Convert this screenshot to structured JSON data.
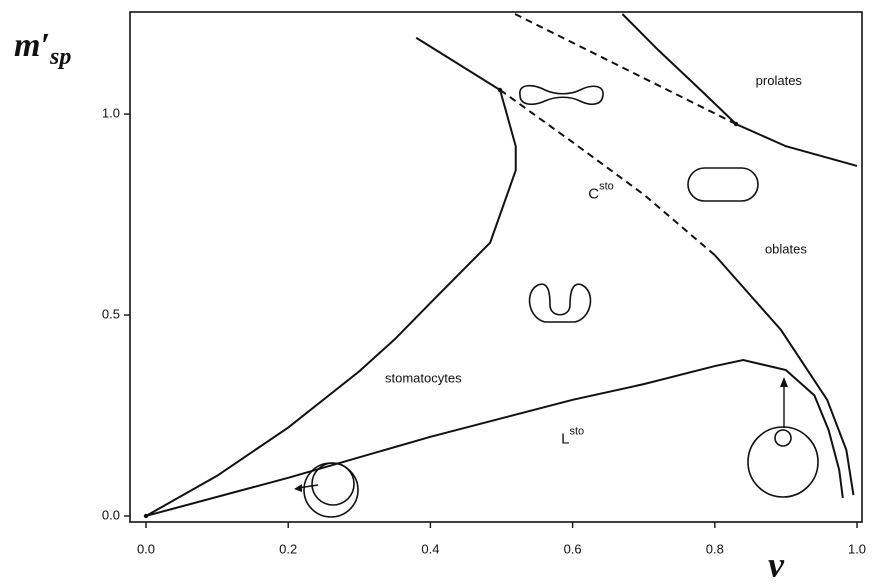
{
  "chart_data": {
    "type": "line",
    "xlabel": "v",
    "ylabel": "m′",
    "ylabel_sub": "sp",
    "xlim": [
      -0.0225,
      1.007
    ],
    "ylim": [
      -0.015,
      1.254
    ],
    "xticks": [
      {
        "value": 0,
        "label": "0.0"
      },
      0.2,
      0.4,
      0.6,
      0.8,
      {
        "value": 1,
        "label": "1.0"
      }
    ],
    "yticks": [
      {
        "value": 0,
        "label": "0.0"
      },
      {
        "value": 0.5,
        "label": "0.5"
      },
      {
        "value": 1,
        "label": "1.0"
      }
    ],
    "color": "#111111",
    "series": [
      {
        "style": "solid",
        "x": [
          0,
          0.2,
          0.4,
          0.6,
          0.7,
          0.8,
          0.84,
          0.9,
          0.94,
          0.96,
          0.975,
          0.98
        ],
        "values": [
          0,
          0.095,
          0.197,
          0.289,
          0.328,
          0.373,
          0.388,
          0.363,
          0.3,
          0.214,
          0.114,
          0.045
        ]
      },
      {
        "style": "solid",
        "x": [
          0.8,
          0.893,
          0.958,
          0.985,
          0.995
        ],
        "values": [
          0.649,
          0.463,
          0.289,
          0.164,
          0.052
        ]
      },
      {
        "style": "solid",
        "x": [
          0,
          0.1,
          0.2,
          0.3,
          0.35,
          0.4,
          0.484,
          0.52,
          0.52,
          0.498,
          0.38
        ],
        "values": [
          0,
          0.1,
          0.22,
          0.36,
          0.44,
          0.53,
          0.68,
          0.86,
          0.92,
          1.06,
          1.19
        ]
      },
      {
        "style": "dashed",
        "x": [
          0.498,
          0.6,
          0.7,
          0.8
        ],
        "values": [
          1.06,
          0.93,
          0.8,
          0.649
        ]
      },
      {
        "style": "dashed",
        "x": [
          0.519,
          0.83
        ],
        "values": [
          1.249,
          0.975
        ]
      },
      {
        "style": "solid",
        "x": [
          0.67,
          0.72,
          0.78,
          0.83,
          0.9,
          1.0
        ],
        "values": [
          1.249,
          1.16,
          1.06,
          0.975,
          0.92,
          0.871
        ]
      }
    ],
    "annotations": [
      {
        "text": "prolates",
        "x": 0.89,
        "y": 1.08
      },
      {
        "text": "oblates",
        "x": 0.9,
        "y": 0.66
      },
      {
        "text": "stomatocytes",
        "x": 0.39,
        "y": 0.34
      },
      {
        "text": "C",
        "sup": "sto",
        "x": 0.64,
        "y": 0.8
      },
      {
        "text": "L",
        "sup": "sto",
        "x": 0.6,
        "y": 0.19
      }
    ]
  }
}
